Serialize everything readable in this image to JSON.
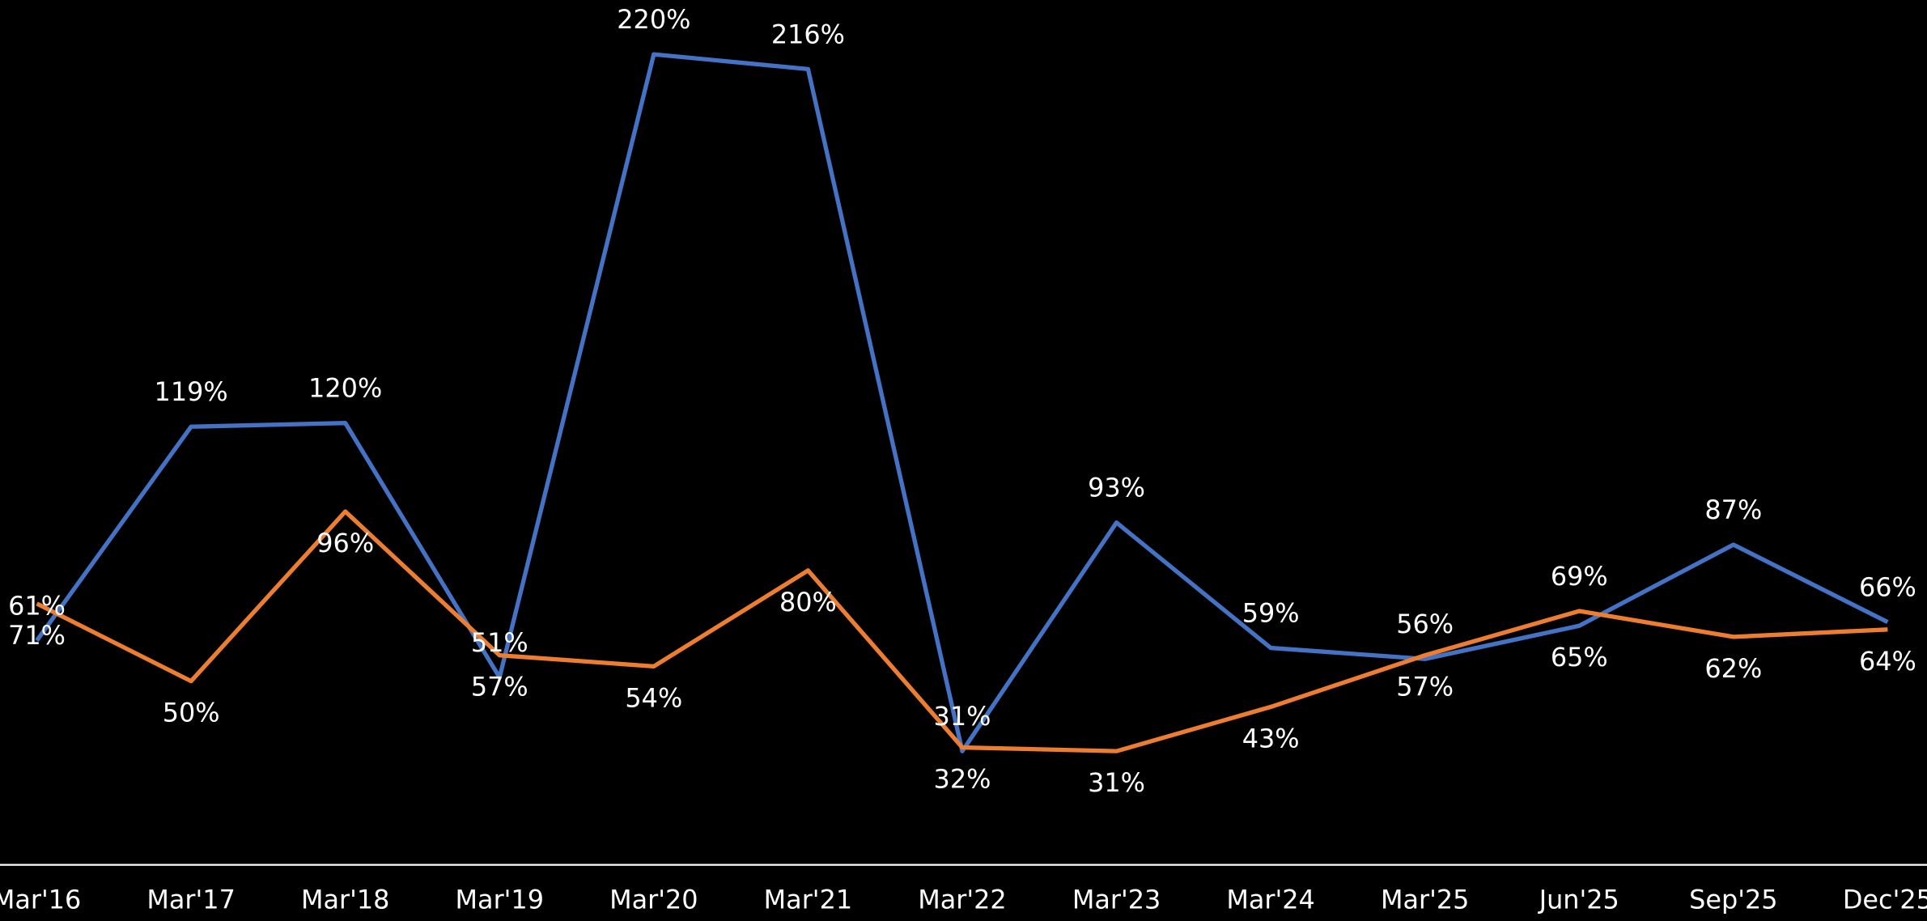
{
  "chart_data": {
    "type": "line",
    "categories": [
      "Mar'16",
      "Mar'17",
      "Mar'18",
      "Mar'19",
      "Mar'20",
      "Mar'21",
      "Mar'22",
      "Mar'23",
      "Mar'24",
      "Mar'25",
      "Jun'25",
      "Sep'25",
      "Dec'25"
    ],
    "series": [
      {
        "color": "#4472c4",
        "values": [
          61,
          119,
          120,
          51,
          220,
          216,
          31,
          93,
          59,
          56,
          65,
          87,
          66
        ],
        "value_labels": [
          "61%",
          "119%",
          "120%",
          "51%",
          "220%",
          "216%",
          "31%",
          "93%",
          "59%",
          "56%",
          "65%",
          "87%",
          "66%"
        ]
      },
      {
        "color": "#ed7d31",
        "values": [
          71,
          50,
          96,
          57,
          54,
          80,
          32,
          31,
          43,
          57,
          69,
          62,
          64
        ],
        "value_labels": [
          "71%",
          "50%",
          "96%",
          "57%",
          "54%",
          "80%",
          "32%",
          "31%",
          "43%",
          "57%",
          "69%",
          "62%",
          "64%"
        ]
      }
    ],
    "ylim": [
      0,
      230
    ]
  }
}
